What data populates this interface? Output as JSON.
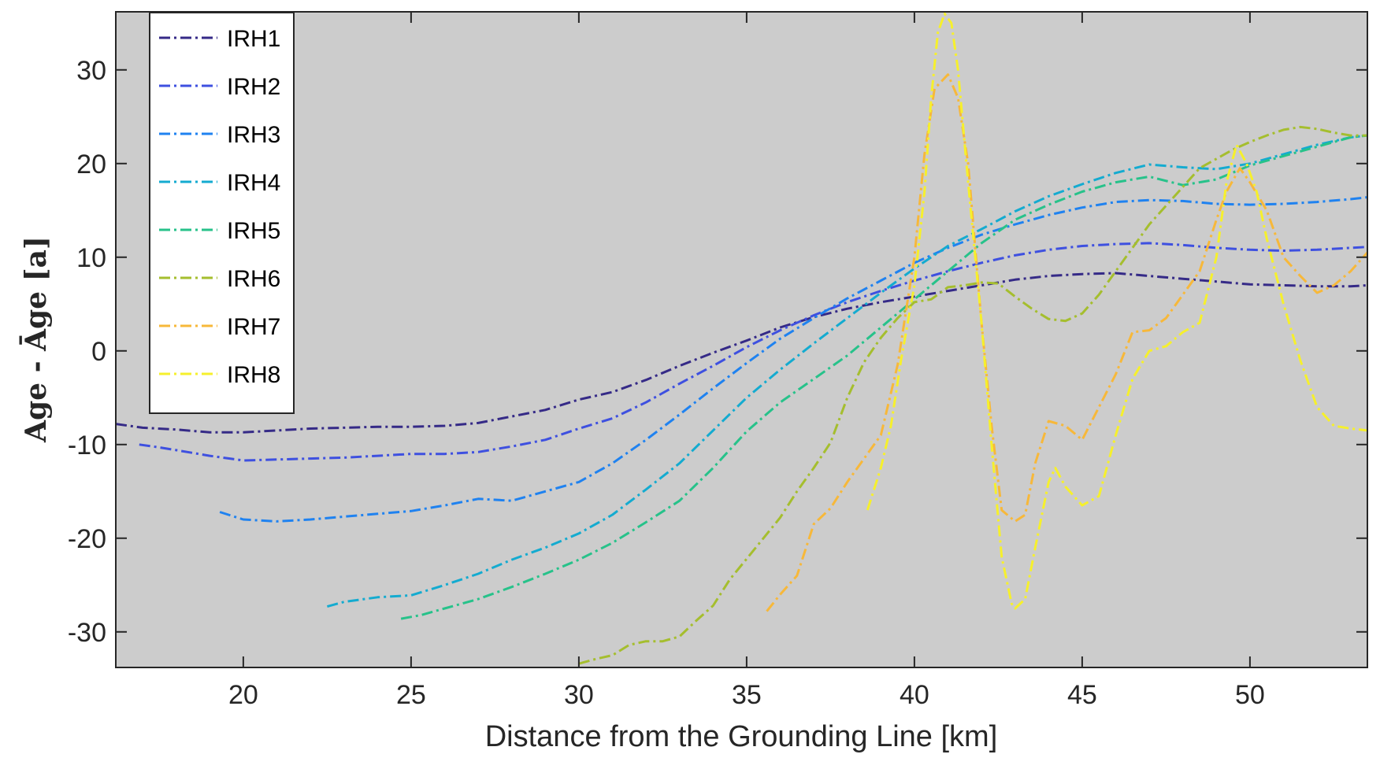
{
  "chart_data": {
    "type": "line",
    "title": "",
    "xlabel": "Distance from the Grounding Line [km]",
    "ylabel": "Age - Āge [a]",
    "xlim": [
      16.2,
      53.5
    ],
    "ylim": [
      -33.8,
      36.2
    ],
    "xticks": [
      20,
      25,
      30,
      35,
      40,
      45,
      50
    ],
    "yticks": [
      -30,
      -20,
      -10,
      0,
      10,
      20,
      30
    ],
    "grid": false,
    "legend_position": "top-left",
    "background_color": "#cccccc",
    "line_style": "dash-dot",
    "series": [
      {
        "name": "IRH1",
        "color": "#352a87",
        "x": [
          16.2,
          17,
          18,
          19,
          20,
          21,
          22,
          23,
          24,
          25,
          26,
          27,
          28,
          29,
          30,
          31,
          32,
          33,
          34,
          35,
          36,
          37,
          38,
          39,
          40,
          41,
          42,
          43,
          44,
          45,
          46,
          47,
          48,
          49,
          50,
          51,
          52,
          53,
          53.5
        ],
        "y": [
          -7.8,
          -8.2,
          -8.4,
          -8.7,
          -8.7,
          -8.5,
          -8.3,
          -8.2,
          -8.1,
          -8.1,
          -8.0,
          -7.7,
          -7.0,
          -6.3,
          -5.2,
          -4.4,
          -3.1,
          -1.6,
          -0.2,
          1.1,
          2.5,
          3.6,
          4.5,
          5.2,
          5.8,
          6.4,
          7.0,
          7.6,
          8.0,
          8.2,
          8.3,
          8.0,
          7.7,
          7.4,
          7.1,
          7.0,
          6.9,
          6.9,
          7.0
        ]
      },
      {
        "name": "IRH2",
        "color": "#3e50e0",
        "x": [
          16.9,
          17.5,
          18,
          19,
          20,
          21,
          22,
          23,
          24,
          25,
          26,
          27,
          28,
          29,
          30,
          31,
          32,
          33,
          34,
          35,
          36,
          37,
          38,
          39,
          40,
          41,
          42,
          43,
          44,
          45,
          46,
          47,
          48,
          49,
          50,
          51,
          52,
          53,
          53.5
        ],
        "y": [
          -10.0,
          -10.3,
          -10.6,
          -11.2,
          -11.7,
          -11.6,
          -11.5,
          -11.4,
          -11.2,
          -11.0,
          -11.0,
          -10.8,
          -10.2,
          -9.5,
          -8.3,
          -7.2,
          -5.5,
          -3.5,
          -1.6,
          0.4,
          2.2,
          3.8,
          5.2,
          6.4,
          7.5,
          8.5,
          9.4,
          10.2,
          10.8,
          11.2,
          11.4,
          11.5,
          11.3,
          11.0,
          10.8,
          10.7,
          10.8,
          11.0,
          11.1
        ]
      },
      {
        "name": "IRH3",
        "color": "#1f82f0",
        "x": [
          19.3,
          20,
          21,
          22,
          23,
          24,
          25,
          26,
          27,
          28,
          29,
          30,
          31,
          32,
          33,
          34,
          35,
          36,
          37,
          38,
          39,
          40,
          41,
          42,
          43,
          44,
          45,
          46,
          47,
          48,
          49,
          50,
          51,
          52,
          53,
          53.5
        ],
        "y": [
          -17.2,
          -18.0,
          -18.2,
          -18.0,
          -17.7,
          -17.4,
          -17.1,
          -16.5,
          -15.8,
          -16.0,
          -15.0,
          -14.0,
          -12.0,
          -9.5,
          -6.8,
          -4.0,
          -1.3,
          1.3,
          3.5,
          5.6,
          7.5,
          9.4,
          11.0,
          12.4,
          13.5,
          14.5,
          15.3,
          15.9,
          16.1,
          16.0,
          15.7,
          15.6,
          15.7,
          15.9,
          16.2,
          16.4
        ]
      },
      {
        "name": "IRH4",
        "color": "#14abd0",
        "x": [
          22.5,
          23,
          24,
          25,
          26,
          27,
          28,
          29,
          30,
          31,
          32,
          33,
          34,
          35,
          36,
          37,
          38,
          39,
          40,
          41,
          42,
          43,
          44,
          45,
          46,
          47,
          48,
          49,
          50,
          51,
          52,
          53,
          53.5
        ],
        "y": [
          -27.3,
          -26.8,
          -26.3,
          -26.1,
          -25.0,
          -23.8,
          -22.3,
          -21.0,
          -19.5,
          -17.5,
          -14.8,
          -12.0,
          -8.5,
          -5.0,
          -2.0,
          0.8,
          3.5,
          6.2,
          8.8,
          11.2,
          13.0,
          14.9,
          16.5,
          17.8,
          19.0,
          19.9,
          19.6,
          19.4,
          20.0,
          21.0,
          22.0,
          22.8,
          23.0
        ]
      },
      {
        "name": "IRH5",
        "color": "#27c28a",
        "x": [
          24.7,
          25.3,
          26,
          27,
          28,
          29,
          30,
          31,
          32,
          33,
          34,
          35,
          36,
          37,
          38,
          39,
          40,
          41,
          42,
          43,
          44,
          45,
          46,
          47,
          48,
          49,
          50,
          51,
          52,
          53,
          53.5
        ],
        "y": [
          -28.6,
          -28.2,
          -27.5,
          -26.5,
          -25.2,
          -23.8,
          -22.3,
          -20.5,
          -18.3,
          -16.0,
          -12.5,
          -8.6,
          -5.5,
          -3.0,
          -0.5,
          2.5,
          5.5,
          8.5,
          11.5,
          14.0,
          15.6,
          17.0,
          18.0,
          18.6,
          17.7,
          18.3,
          19.8,
          20.8,
          21.8,
          22.8,
          23.0
        ]
      },
      {
        "name": "IRH6",
        "color": "#a5be2e",
        "x": [
          30,
          30.5,
          31,
          31.5,
          32,
          32.5,
          33,
          33.5,
          34,
          34.5,
          35,
          35.5,
          36,
          36.5,
          37,
          37.5,
          38,
          38.5,
          39,
          39.5,
          40,
          40.5,
          41,
          41.5,
          42,
          42.5,
          43,
          43.5,
          44,
          44.5,
          45,
          45.5,
          46,
          46.5,
          47,
          47.5,
          48,
          48.5,
          49,
          49.5,
          50,
          50.5,
          51,
          51.5,
          52,
          52.5,
          53,
          53.5
        ],
        "y": [
          -33.4,
          -32.9,
          -32.5,
          -31.4,
          -31.0,
          -31.0,
          -30.5,
          -28.8,
          -27.2,
          -24.4,
          -22.2,
          -20.0,
          -17.8,
          -15.0,
          -12.5,
          -9.8,
          -5.0,
          -1.2,
          1.4,
          3.5,
          5.2,
          5.5,
          6.8,
          7.0,
          7.3,
          7.2,
          5.8,
          4.5,
          3.4,
          3.2,
          4.0,
          6.0,
          8.5,
          11.0,
          13.5,
          15.5,
          17.5,
          19.5,
          20.5,
          21.5,
          22.3,
          23.0,
          23.6,
          23.9,
          23.7,
          23.3,
          23.0,
          23.0
        ]
      },
      {
        "name": "IRH7",
        "color": "#f7b83a",
        "x": [
          35.6,
          36,
          36.5,
          37,
          37.5,
          38,
          38.5,
          39,
          39.5,
          40,
          40.3,
          40.6,
          41,
          41.3,
          41.6,
          42,
          42.3,
          42.6,
          43,
          43.3,
          43.6,
          44,
          44.5,
          45,
          45.5,
          46,
          46.5,
          47,
          47.5,
          48,
          48.5,
          49,
          49.3,
          49.7,
          50,
          50.5,
          51,
          51.5,
          52,
          52.5,
          53,
          53.5
        ],
        "y": [
          -27.8,
          -26.0,
          -24.0,
          -18.5,
          -16.8,
          -14.0,
          -11.5,
          -9.0,
          -1.5,
          10.0,
          21.0,
          28.0,
          29.5,
          27.0,
          20.0,
          3.0,
          -8.0,
          -17.0,
          -18.2,
          -17.5,
          -12.0,
          -7.5,
          -8.0,
          -9.5,
          -6.0,
          -2.5,
          2.0,
          2.2,
          3.5,
          6.0,
          8.5,
          14.0,
          17.0,
          19.5,
          18.0,
          15.0,
          10.0,
          8.0,
          6.2,
          7.0,
          8.5,
          10.5
        ]
      },
      {
        "name": "IRH8",
        "color": "#f6f02c",
        "x": [
          38.6,
          39,
          39.3,
          39.6,
          40,
          40.3,
          40.5,
          40.7,
          40.9,
          41.1,
          41.3,
          41.6,
          42,
          42.3,
          42.6,
          42.9,
          43,
          43.3,
          43.6,
          44,
          44.2,
          44.5,
          45,
          45.5,
          46,
          46.5,
          47,
          47.5,
          48,
          48.5,
          49,
          49.3,
          49.6,
          49.9,
          50.2,
          50.5,
          51,
          51.5,
          52,
          52.5,
          53,
          53.5
        ],
        "y": [
          -17.0,
          -12.5,
          -8.0,
          -1.0,
          7.0,
          17.0,
          27.0,
          34.0,
          36.0,
          35.0,
          30.0,
          18.0,
          3.0,
          -10.0,
          -22.0,
          -27.0,
          -27.5,
          -26.5,
          -21.0,
          -14.0,
          -12.5,
          -14.5,
          -16.5,
          -15.5,
          -9.0,
          -3.0,
          0.0,
          0.5,
          2.0,
          3.0,
          10.0,
          18.0,
          22.0,
          20.0,
          17.0,
          12.0,
          5.0,
          -1.0,
          -6.0,
          -8.0,
          -8.3,
          -8.5
        ]
      }
    ]
  }
}
